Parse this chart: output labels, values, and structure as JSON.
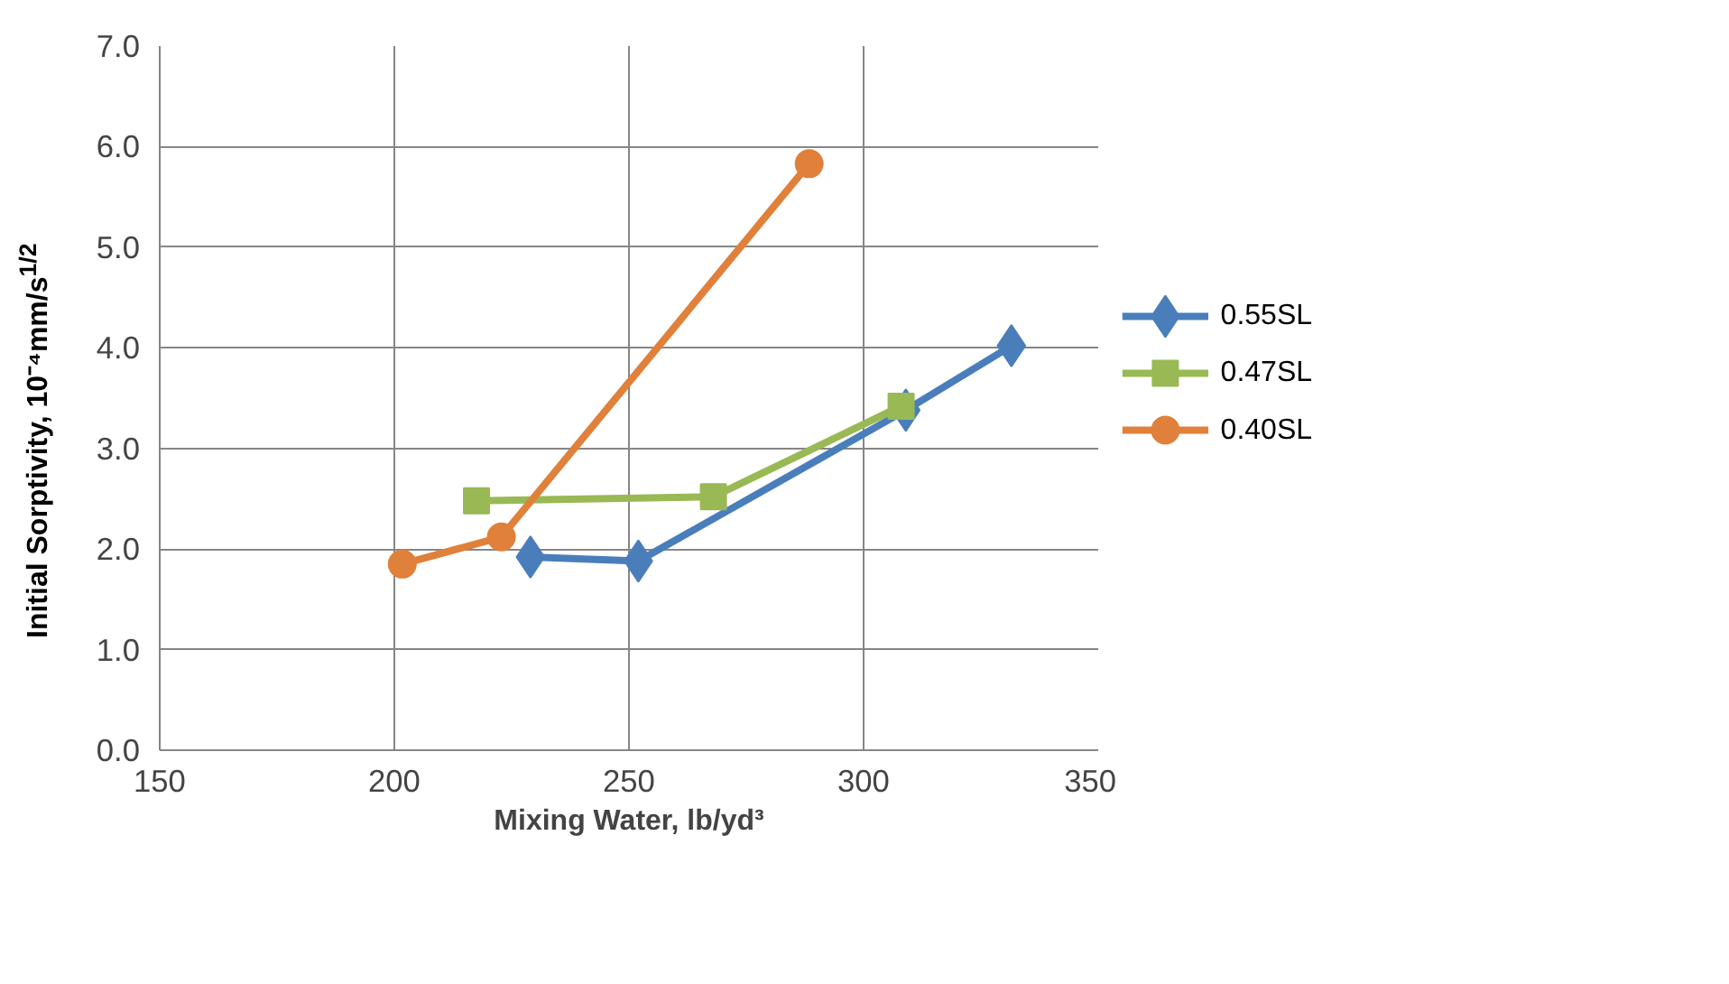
{
  "chart_data": {
    "type": "line",
    "xlabel": "Mixing Water, lb/yd³",
    "ylabel": "Initial Sorptivity, 10⁻⁴mm/s$^{1/2}$",
    "xlim": [
      150,
      350
    ],
    "xticks": [
      150,
      200,
      250,
      300,
      350
    ],
    "ylim": [
      0,
      7
    ],
    "yticks": [
      {
        "value": 0,
        "label": "0.0"
      },
      {
        "value": 1,
        "label": "1.0"
      },
      {
        "value": 2,
        "label": "2.0"
      },
      {
        "value": 3,
        "label": "3.0"
      },
      {
        "value": 4,
        "label": "4.0"
      },
      {
        "value": 5,
        "label": "5.0"
      },
      {
        "value": 6,
        "label": "6.0"
      },
      {
        "value": 7,
        "label": "7.0"
      }
    ],
    "grid": true,
    "legend": "right",
    "line_style": "solid",
    "series": [
      {
        "name": "0.55SL",
        "color": "#4a7ebb",
        "marker": "diamond",
        "x": [
          229,
          252,
          309,
          331.5
        ],
        "values": [
          1.92,
          1.88,
          3.38,
          4.02
        ]
      },
      {
        "name": "0.47SL",
        "color": "#98b954",
        "marker": "square",
        "x": [
          217.5,
          268,
          308
        ],
        "values": [
          2.48,
          2.52,
          3.42
        ]
      },
      {
        "name": "0.40SL",
        "color": "#e0803a",
        "marker": "circle",
        "x": [
          201.7,
          222.8,
          288.4
        ],
        "values": [
          1.85,
          2.12,
          5.83
        ]
      }
    ]
  }
}
